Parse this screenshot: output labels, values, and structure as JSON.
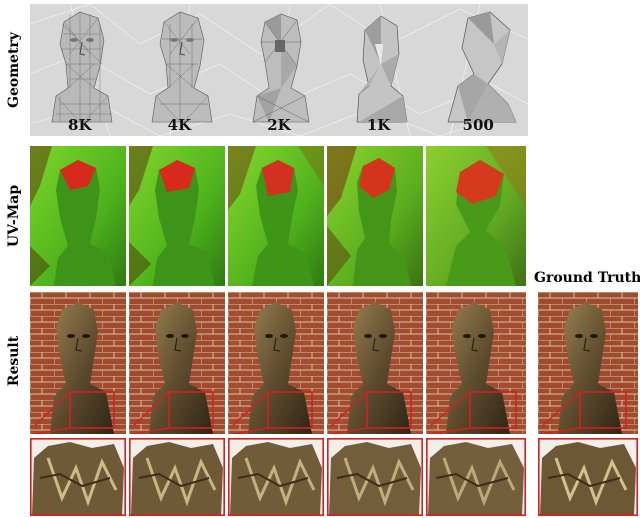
{
  "row_labels": {
    "geometry": "Geometry",
    "uvmap": "UV-Map",
    "result": "Result"
  },
  "geometry_captions": [
    "8K",
    "4K",
    "2K",
    "1K",
    "500"
  ],
  "ground_truth_label": "Ground Truth",
  "colors": {
    "inset_box": "#d42020",
    "geometry_bg": "#d8d8d8",
    "uv_green": "#3a9a18",
    "uv_red": "#d4201a",
    "brick": "#a0492f",
    "bronze": "#6d5a3a"
  }
}
